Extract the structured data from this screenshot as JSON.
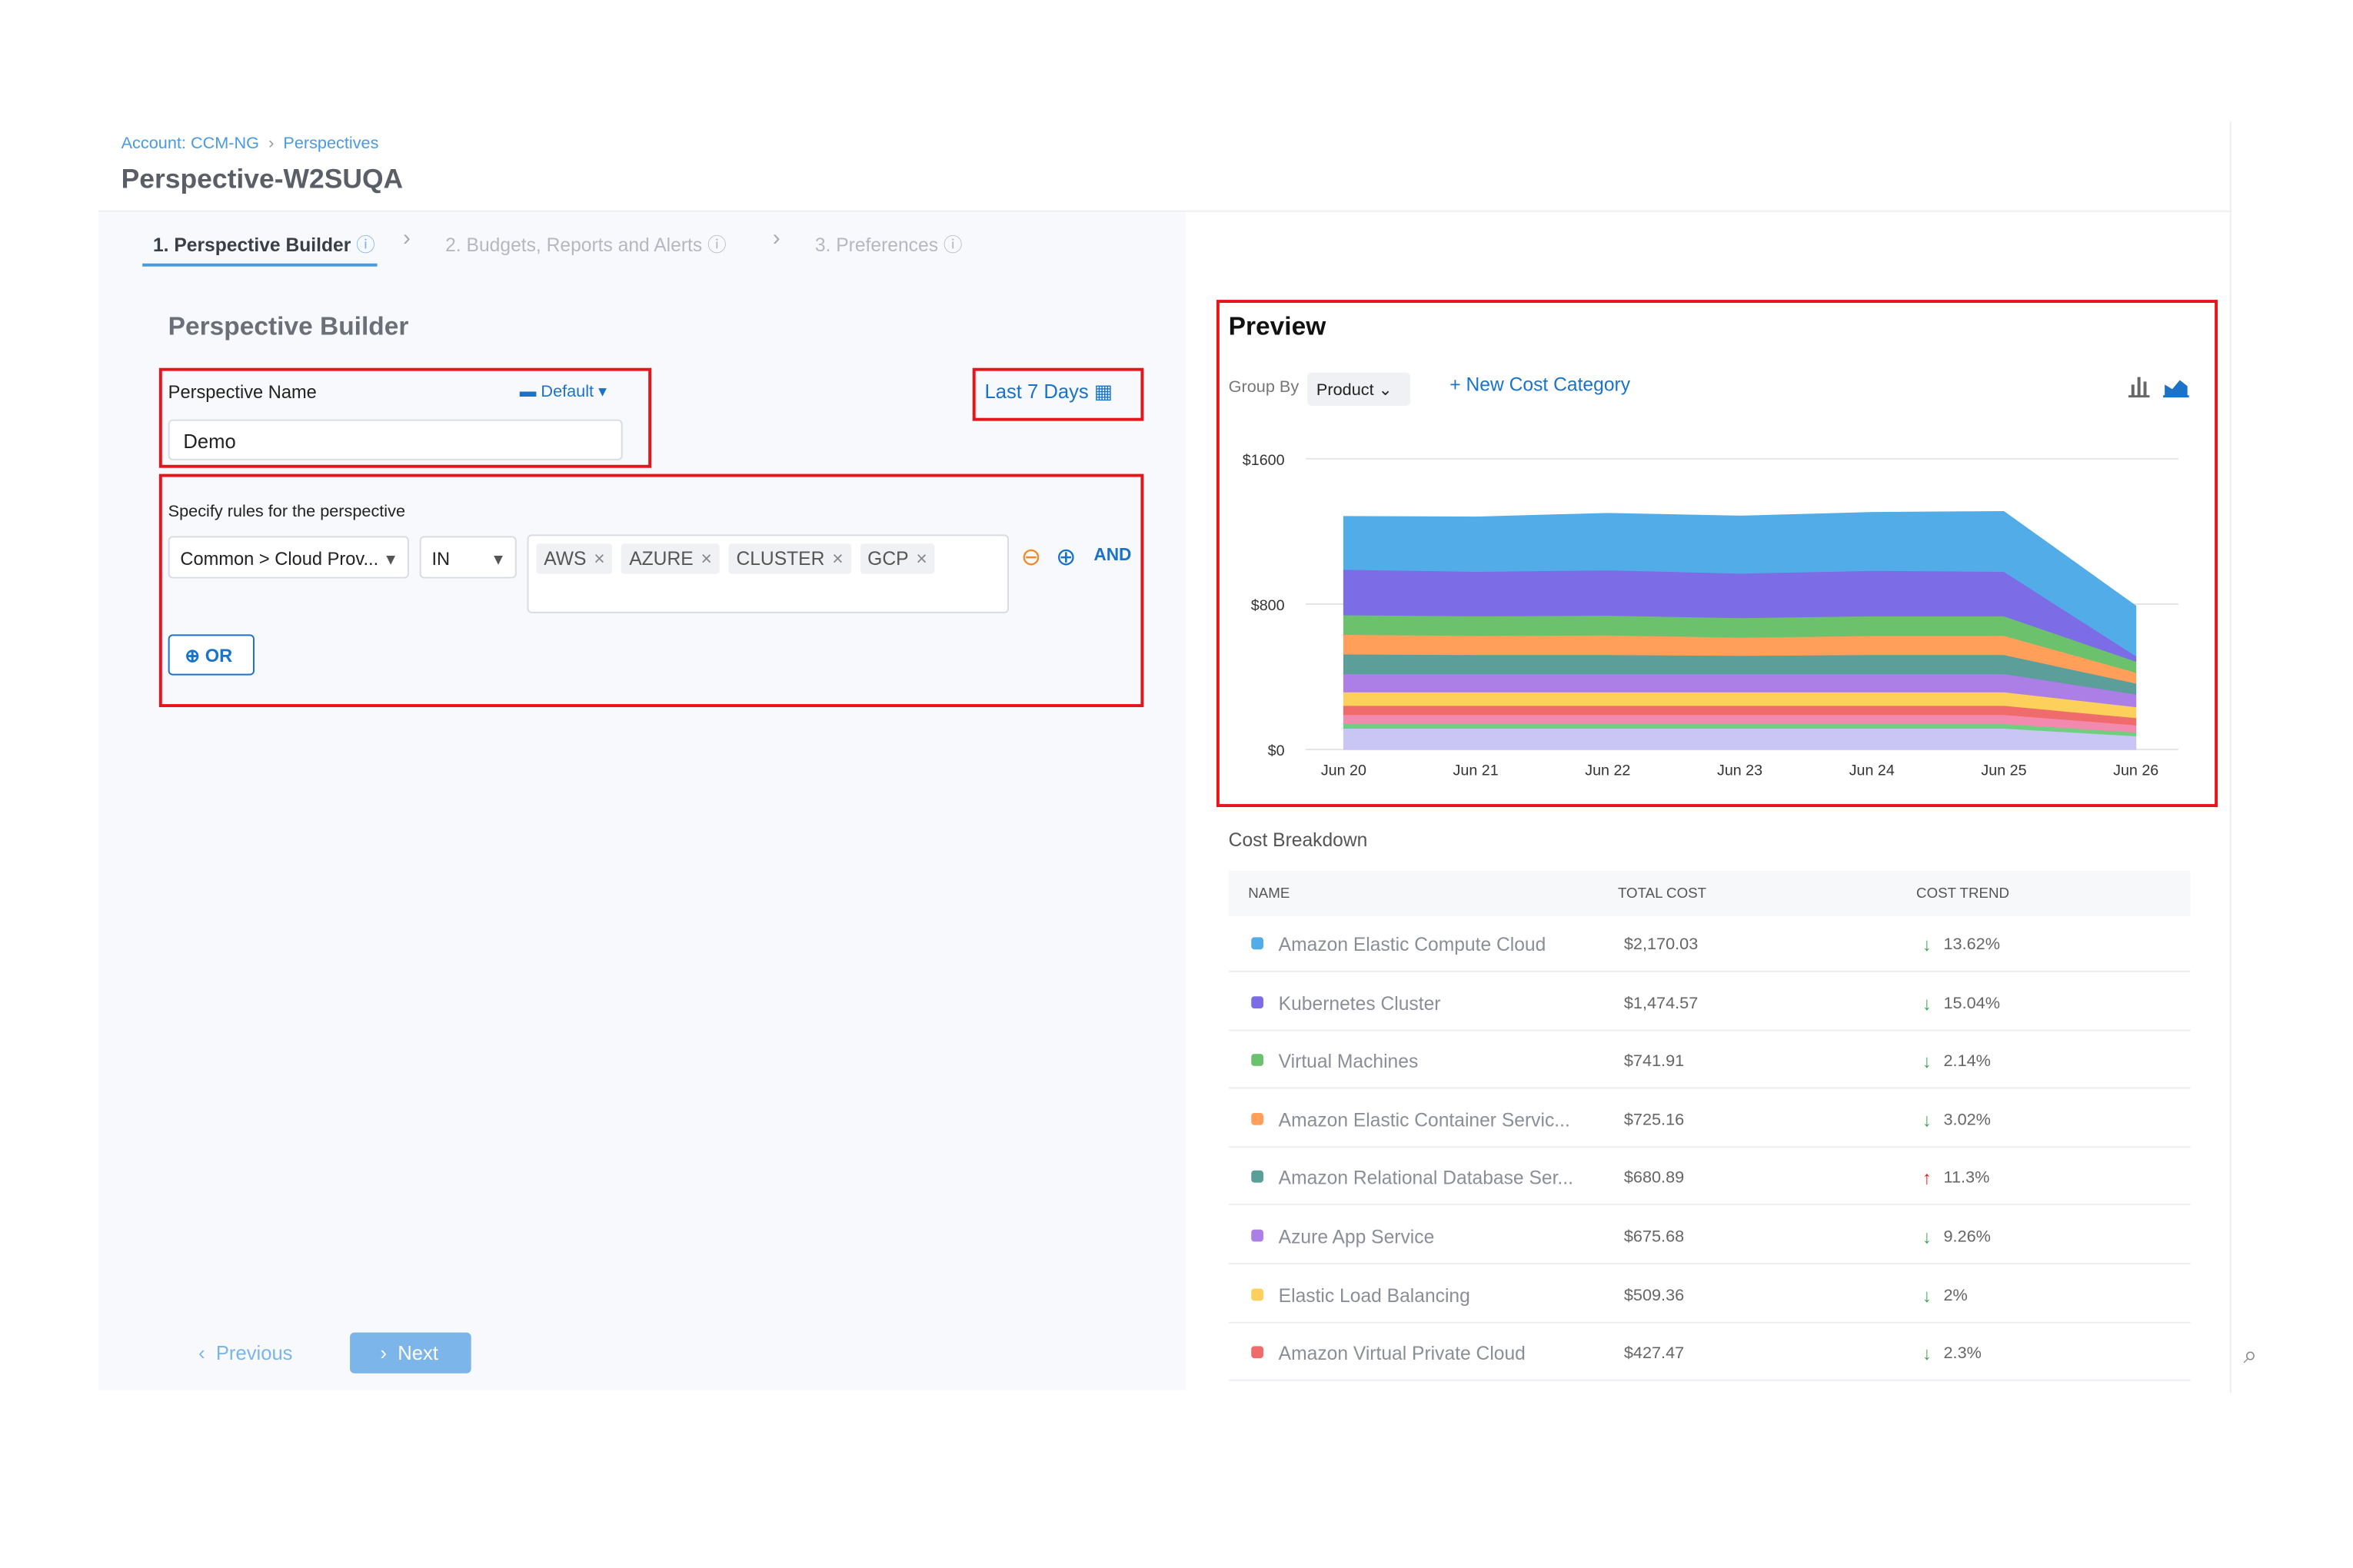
{
  "breadcrumb": {
    "account": "Account: CCM-NG",
    "perspectives": "Perspectives"
  },
  "title": "Perspective-W2SUQA",
  "steps": [
    "1. Perspective Builder",
    "2. Budgets, Reports and Alerts",
    "3. Preferences"
  ],
  "builder": {
    "heading": "Perspective Builder",
    "name_label": "Perspective Name",
    "folder": "Default",
    "name_value": "Demo",
    "time_range": "Last 7 Days",
    "rules_label": "Specify rules for the perspective",
    "field": "Common > Cloud Prov...",
    "operator": "IN",
    "values": [
      "AWS",
      "AZURE",
      "CLUSTER",
      "GCP"
    ],
    "and": "AND",
    "or": "OR"
  },
  "buttons": {
    "previous": "Previous",
    "next": "Next"
  },
  "preview": {
    "heading": "Preview",
    "group_by_label": "Group By",
    "group_by": "Product",
    "new_cost_category": "New Cost Category"
  },
  "chart_data": {
    "type": "stacked-area",
    "categories": [
      "Jun 20",
      "Jun 21",
      "Jun 22",
      "Jun 23",
      "Jun 24",
      "Jun 25",
      "Jun 26"
    ],
    "ylim": [
      0,
      1600
    ],
    "yticks": [
      {
        "value": 0,
        "label": "$0"
      },
      {
        "value": 800,
        "label": "$800"
      },
      {
        "value": 1600,
        "label": "$1600"
      }
    ],
    "grid": true,
    "series": [
      {
        "color": "#c9c6f5",
        "values": [
          117,
          117,
          117,
          117,
          117,
          117,
          75
        ]
      },
      {
        "color": "#6fcf7f",
        "values": [
          25,
          25,
          25,
          25,
          25,
          25,
          20
        ]
      },
      {
        "color": "#f28ab0",
        "values": [
          50,
          50,
          50,
          50,
          50,
          50,
          40
        ]
      },
      {
        "color": "#f06b6b",
        "values": [
          50,
          50,
          50,
          50,
          50,
          50,
          40
        ]
      },
      {
        "color": "#fcd05a",
        "values": [
          75,
          75,
          75,
          75,
          75,
          75,
          60
        ]
      },
      {
        "color": "#ab7fe6",
        "values": [
          100,
          100,
          100,
          100,
          100,
          100,
          70
        ]
      },
      {
        "color": "#5b9e9a",
        "values": [
          108,
          105,
          105,
          100,
          105,
          105,
          60
        ]
      },
      {
        "color": "#ff9f5a",
        "values": [
          108,
          105,
          108,
          100,
          105,
          105,
          60
        ]
      },
      {
        "color": "#6cc26c",
        "values": [
          108,
          108,
          108,
          108,
          108,
          108,
          60
        ]
      },
      {
        "color": "#7c6ce6",
        "values": [
          250,
          245,
          250,
          245,
          250,
          245,
          30
        ]
      },
      {
        "color": "#52ace8",
        "values": [
          292,
          300,
          312,
          315,
          320,
          330,
          275
        ]
      }
    ]
  },
  "breakdown": {
    "heading": "Cost Breakdown",
    "columns": [
      "NAME",
      "TOTAL COST",
      "COST TREND"
    ],
    "rows": [
      {
        "color": "#52ace8",
        "name": "Amazon Elastic Compute Cloud",
        "cost": "$2,170.03",
        "trend": "13.62%",
        "direction": "down"
      },
      {
        "color": "#7c6ce6",
        "name": "Kubernetes Cluster",
        "cost": "$1,474.57",
        "trend": "15.04%",
        "direction": "down"
      },
      {
        "color": "#6cc26c",
        "name": "Virtual Machines",
        "cost": "$741.91",
        "trend": "2.14%",
        "direction": "down"
      },
      {
        "color": "#ff9f5a",
        "name": "Amazon Elastic Container Servic...",
        "cost": "$725.16",
        "trend": "3.02%",
        "direction": "down"
      },
      {
        "color": "#5b9e9a",
        "name": "Amazon Relational Database Ser...",
        "cost": "$680.89",
        "trend": "11.3%",
        "direction": "up"
      },
      {
        "color": "#ab7fe6",
        "name": "Azure App Service",
        "cost": "$675.68",
        "trend": "9.26%",
        "direction": "down"
      },
      {
        "color": "#fcd05a",
        "name": "Elastic Load Balancing",
        "cost": "$509.36",
        "trend": "2%",
        "direction": "down"
      },
      {
        "color": "#f06b6b",
        "name": "Amazon Virtual Private Cloud",
        "cost": "$427.47",
        "trend": "2.3%",
        "direction": "down"
      }
    ]
  }
}
